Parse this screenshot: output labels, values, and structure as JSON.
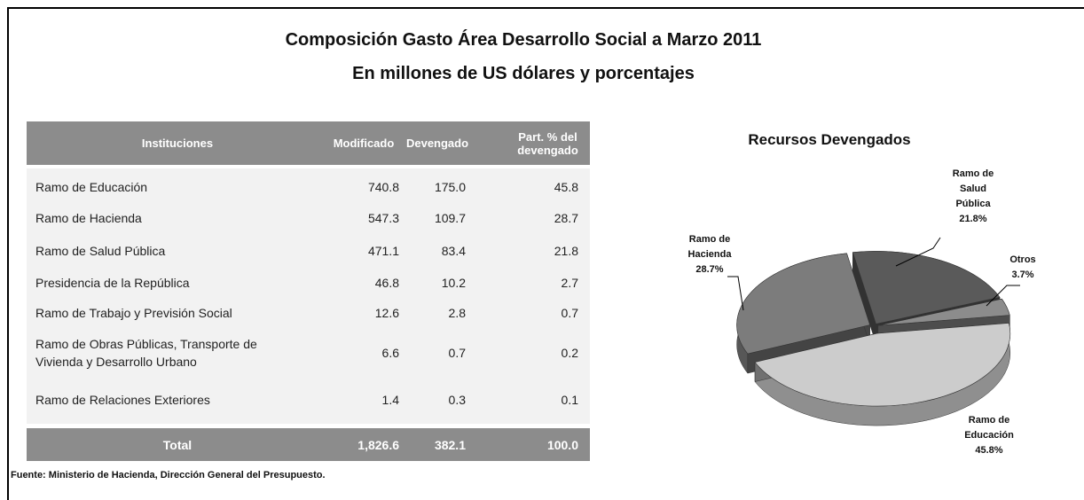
{
  "header": {
    "title": "Composición Gasto Área Desarrollo Social a Marzo 2011",
    "subtitle": "En millones de US dólares y porcentajes"
  },
  "table": {
    "columns": [
      "Instituciones",
      "Modificado",
      "Devengado",
      "Part. % del devengado"
    ],
    "rows": [
      [
        "Ramo de  Educación",
        "740.8",
        "175.0",
        "45.8"
      ],
      [
        "Ramo de Hacienda",
        "547.3",
        "109.7",
        "28.7"
      ],
      [
        "Ramo de Salud Pública",
        "471.1",
        "83.4",
        "21.8"
      ],
      [
        "Presidencia de la República",
        "46.8",
        "10.2",
        "2.7"
      ],
      [
        "Ramo de Trabajo y Previsión Social",
        "12.6",
        "2.8",
        "0.7"
      ],
      [
        "Ramo de Obras Públicas, Transporte de Vivienda y Desarrollo Urbano",
        "6.6",
        "0.7",
        "0.2"
      ],
      [
        "Ramo de Relaciones Exteriores",
        "1.4",
        "0.3",
        "0.1"
      ]
    ],
    "total": [
      "Total",
      "1,826.6",
      "382.1",
      "100.0"
    ]
  },
  "source": {
    "label": "Fuente:",
    "text": "Ministerio de Hacienda, Dirección General del Presupuesto."
  },
  "chart_data": {
    "type": "pie",
    "title": "Recursos Devengados",
    "categories": [
      "Ramo de Salud Pública",
      "Otros",
      "Ramo de Educación",
      "Ramo de Hacienda"
    ],
    "values": [
      21.8,
      3.7,
      45.8,
      28.7
    ],
    "value_labels": [
      "21.8%",
      "3.7%",
      "45.8%",
      "28.7%"
    ],
    "colors": [
      "#5a5a5a",
      "#8c8c8c",
      "#cccccc",
      "#7c7c7c"
    ]
  }
}
